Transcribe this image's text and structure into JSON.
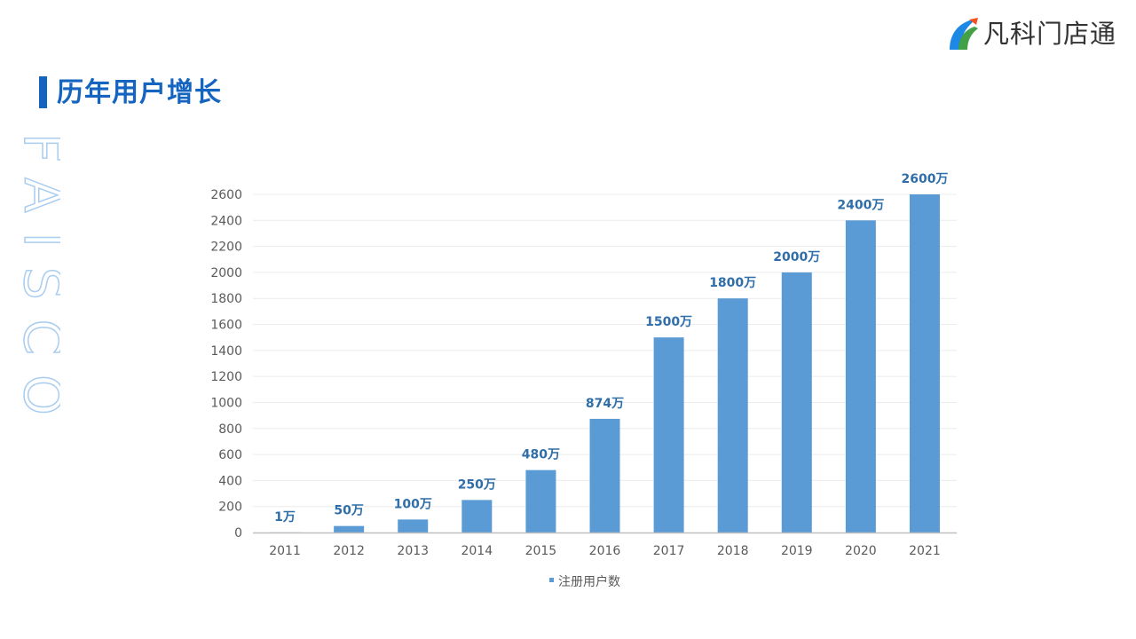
{
  "header": {
    "title": "历年用户增长",
    "logo_text": "凡科门店通",
    "watermark_text": "FAISCO"
  },
  "colors": {
    "accent": "#1565c0",
    "bar": "#5b9bd5",
    "data_label": "#2f6ea8"
  },
  "chart_data": {
    "type": "bar",
    "categories": [
      "2011",
      "2012",
      "2013",
      "2014",
      "2015",
      "2016",
      "2017",
      "2018",
      "2019",
      "2020",
      "2021"
    ],
    "series": [
      {
        "name": "注册用户数",
        "values": [
          1,
          50,
          100,
          250,
          480,
          874,
          1500,
          1800,
          2000,
          2400,
          2600
        ],
        "labels": [
          "1万",
          "50万",
          "100万",
          "250万",
          "480万",
          "874万",
          "1500万",
          "1800万",
          "2000万",
          "2400万",
          "2600万"
        ]
      }
    ],
    "yticks": [
      0,
      200,
      400,
      600,
      800,
      1000,
      1200,
      1400,
      1600,
      1800,
      2000,
      2200,
      2400,
      2600
    ],
    "ylim": [
      0,
      2600
    ],
    "grid": true,
    "legend_position": "bottom"
  }
}
